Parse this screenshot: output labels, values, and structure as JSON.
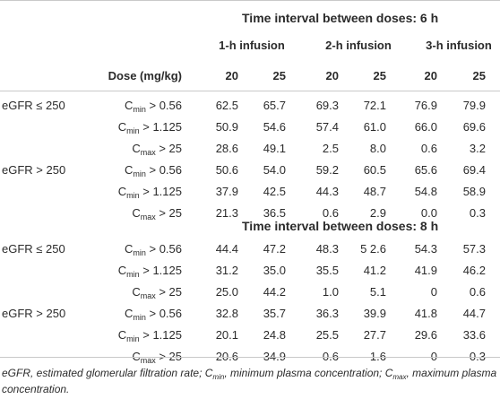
{
  "header": {
    "group_titles": [
      "Time interval between doses: 6 h",
      "Time interval between doses: 8 h"
    ],
    "infusions": [
      "1-h infusion",
      "2-h infusion",
      "3-h infusion"
    ],
    "dose_label": "Dose (mg/kg)",
    "doses": [
      "20",
      "25",
      "20",
      "25",
      "20",
      "25"
    ]
  },
  "rows": [
    {
      "group": "eGFR ≤ 250",
      "param": "C",
      "sub": "min",
      "cond": " > 0.56",
      "values": [
        "62.5",
        "65.7",
        "69.3",
        "72.1",
        "76.9",
        "79.9"
      ]
    },
    {
      "group": "",
      "param": "C",
      "sub": "min",
      "cond": " > 1.125",
      "values": [
        "50.9",
        "54.6",
        "57.4",
        "61.0",
        "66.0",
        "69.6"
      ]
    },
    {
      "group": "",
      "param": "C",
      "sub": "max",
      "cond": " > 25",
      "values": [
        "28.6",
        "49.1",
        "2.5",
        "8.0",
        "0.6",
        "3.2"
      ]
    },
    {
      "group": "eGFR > 250",
      "param": "C",
      "sub": "min",
      "cond": " > 0.56",
      "values": [
        "50.6",
        "54.0",
        "59.2",
        "60.5",
        "65.6",
        "69.4"
      ]
    },
    {
      "group": "",
      "param": "C",
      "sub": "min",
      "cond": " > 1.125",
      "values": [
        "37.9",
        "42.5",
        "44.3",
        "48.7",
        "54.8",
        "58.9"
      ]
    },
    {
      "group": "",
      "param": "C",
      "sub": "max",
      "cond": " > 25",
      "values": [
        "21.3",
        "36.5",
        "0.6",
        "2.9",
        "0.0",
        "0.3"
      ]
    },
    {
      "group": "eGFR ≤ 250",
      "param": "C",
      "sub": "min",
      "cond": " > 0.56",
      "values": [
        "44.4",
        "47.2",
        "48.3",
        "5 2.6",
        "54.3",
        "57.3"
      ]
    },
    {
      "group": "",
      "param": "C",
      "sub": "min",
      "cond": " > 1.125",
      "values": [
        "31.2",
        "35.0",
        "35.5",
        "41.2",
        "41.9",
        "46.2"
      ]
    },
    {
      "group": "",
      "param": "C",
      "sub": "max",
      "cond": " > 25",
      "values": [
        "25.0",
        "44.2",
        "1.0",
        "5.1",
        "0",
        "0.6"
      ]
    },
    {
      "group": "eGFR > 250",
      "param": "C",
      "sub": "min",
      "cond": " > 0.56",
      "values": [
        "32.8",
        "35.7",
        "36.3",
        "39.9",
        "41.8",
        "44.7"
      ]
    },
    {
      "group": "",
      "param": "C",
      "sub": "min",
      "cond": " > 1.125",
      "values": [
        "20.1",
        "24.8",
        "25.5",
        "27.7",
        "29.6",
        "33.6"
      ]
    },
    {
      "group": "",
      "param": "C",
      "sub": "max",
      "cond": " > 25",
      "values": [
        "20.6",
        "34.9",
        "0.6",
        "1.6",
        "0",
        "0.3"
      ]
    }
  ],
  "footnote": {
    "p1": "eGFR, estimated glomerular filtration rate; C",
    "s1": "min",
    "p2": ", minimum plasma concentration; C",
    "s2": "max",
    "p3": ", maximum plasma concentration."
  }
}
